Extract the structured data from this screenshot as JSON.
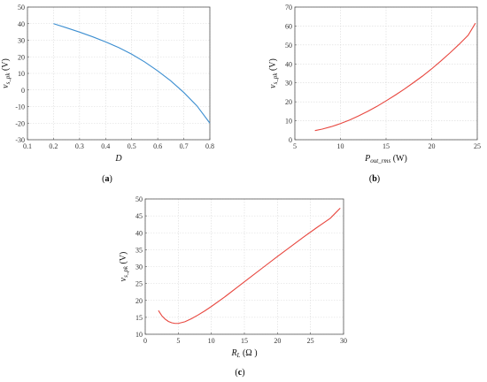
{
  "colors": {
    "series_a": "#3d8fd1",
    "series_b": "#e8473f",
    "series_c": "#e8473f",
    "axis": "#555555",
    "grid": "#d9d9d9"
  },
  "chart_data": [
    {
      "type": "line",
      "panel_label": "a",
      "xlabel": "D",
      "ylabel": {
        "main": "v",
        "sub": "s_pk",
        "unit": " (V)"
      },
      "xlim": [
        0.1,
        0.8
      ],
      "ylim": [
        -30,
        50
      ],
      "xticks": [
        0.1,
        0.2,
        0.3,
        0.4,
        0.5,
        0.6,
        0.7,
        0.8
      ],
      "yticks": [
        -30,
        -20,
        -10,
        0,
        10,
        20,
        30,
        40,
        50
      ],
      "xtick_labels": [
        "0.1",
        "0.2",
        "0.3",
        "0.4",
        "0.5",
        "0.6",
        "0.7",
        "0.8"
      ],
      "ytick_labels": [
        "-30",
        "-20",
        "-10",
        "0",
        "10",
        "20",
        "30",
        "40",
        "50"
      ],
      "grid": true,
      "series": [
        {
          "x": [
            0.2,
            0.25,
            0.3,
            0.35,
            0.4,
            0.45,
            0.5,
            0.55,
            0.6,
            0.65,
            0.7,
            0.75,
            0.8
          ],
          "y": [
            40,
            37.5,
            34.9,
            32.1,
            29,
            25.6,
            21.6,
            16.9,
            11.5,
            5.5,
            -1.5,
            -9.5,
            -20
          ]
        }
      ]
    },
    {
      "type": "line",
      "panel_label": "b",
      "xlabel": {
        "main": "P",
        "sub": "out_rms",
        "unit": " (W)"
      },
      "ylabel": {
        "main": "v",
        "sub": "s_pk",
        "unit": " (V)"
      },
      "xlim": [
        5,
        25
      ],
      "ylim": [
        0,
        70
      ],
      "xticks": [
        5,
        10,
        15,
        20,
        25
      ],
      "yticks": [
        0,
        10,
        20,
        30,
        40,
        50,
        60,
        70
      ],
      "xtick_labels": [
        "5",
        "10",
        "15",
        "20",
        "25"
      ],
      "ytick_labels": [
        "0",
        "10",
        "20",
        "30",
        "40",
        "50",
        "60",
        "70"
      ],
      "grid": true,
      "series": [
        {
          "x": [
            7.2,
            8,
            9,
            10,
            11,
            12,
            13,
            14,
            15,
            16,
            17,
            18,
            19,
            20,
            21,
            22,
            23,
            24,
            24.8
          ],
          "y": [
            4.8,
            5.6,
            6.9,
            8.5,
            10.4,
            12.6,
            15,
            17.6,
            20.5,
            23.5,
            26.7,
            30.1,
            33.6,
            37.4,
            41.5,
            45.8,
            50.3,
            55.1,
            61.5
          ]
        }
      ]
    },
    {
      "type": "line",
      "panel_label": "c",
      "xlabel": {
        "main": "R",
        "sub": "L",
        "unit": " (Ω )"
      },
      "ylabel": {
        "main": "v",
        "sub": "s_pk",
        "unit": " (V)"
      },
      "xlim": [
        0,
        30
      ],
      "ylim": [
        10,
        50
      ],
      "xticks": [
        0,
        5,
        10,
        15,
        20,
        25,
        30
      ],
      "yticks": [
        10,
        15,
        20,
        25,
        30,
        35,
        40,
        45,
        50
      ],
      "xtick_labels": [
        "0",
        "5",
        "10",
        "15",
        "20",
        "25",
        "30"
      ],
      "ytick_labels": [
        "10",
        "15",
        "20",
        "25",
        "30",
        "35",
        "40",
        "45",
        "50"
      ],
      "grid": true,
      "series": [
        {
          "x": [
            2,
            2.5,
            3,
            3.5,
            4,
            4.5,
            5,
            6,
            7,
            8,
            9,
            10,
            12,
            14,
            16,
            18,
            20,
            22,
            24,
            26,
            28,
            29.5
          ],
          "y": [
            17,
            15.5,
            14.5,
            13.8,
            13.4,
            13.2,
            13.2,
            13.7,
            14.6,
            15.7,
            16.9,
            18.2,
            21,
            24,
            27,
            30,
            33,
            35.9,
            38.8,
            41.6,
            44.3,
            47.3
          ]
        }
      ]
    }
  ]
}
